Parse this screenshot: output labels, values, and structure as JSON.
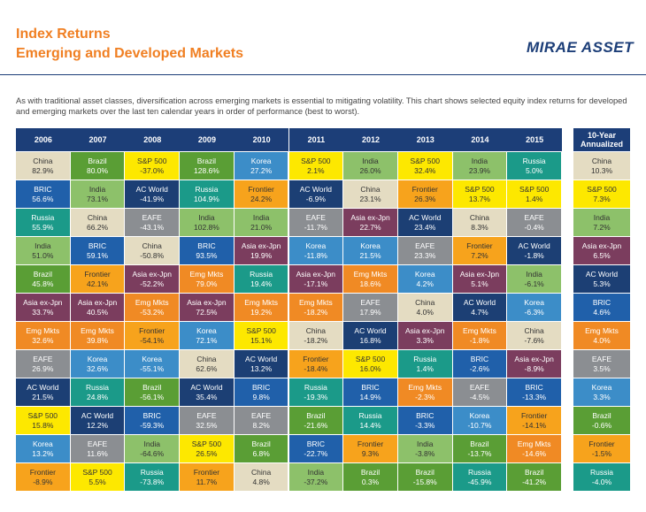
{
  "header": {
    "title_line1": "Index Returns",
    "title_line2": "Emerging and Developed Markets",
    "logo": "MIRAE ASSET"
  },
  "intro": "As with traditional asset classes, diversification across emerging markets is essential to mitigating volatility. This chart shows selected equity index returns for developed and emerging markets over the last ten calendar years in order of performance (best to worst).",
  "colors": {
    "China": {
      "fill": "#e4dcc2",
      "text": "#333"
    },
    "BRIC": {
      "fill": "#2060aa",
      "text": "#fff"
    },
    "Russia": {
      "fill": "#1b9a89",
      "text": "#fff"
    },
    "India": {
      "fill": "#8dc16a",
      "text": "#333"
    },
    "Brazil": {
      "fill": "#5a9e35",
      "text": "#fff"
    },
    "Asia ex-Jpn": {
      "fill": "#7b3d5e",
      "text": "#fff"
    },
    "Emg Mkts": {
      "fill": "#f08a24",
      "text": "#fff"
    },
    "EAFE": {
      "fill": "#8b8e92",
      "text": "#fff"
    },
    "AC World": {
      "fill": "#1c3f74",
      "text": "#fff"
    },
    "S&P 500": {
      "fill": "#fde800",
      "text": "#333"
    },
    "Korea": {
      "fill": "#3c8dc8",
      "text": "#fff"
    },
    "Frontier": {
      "fill": "#f7a31c",
      "text": "#333"
    }
  },
  "table": {
    "years": [
      "2006",
      "2007",
      "2008",
      "2009",
      "2010",
      "2011",
      "2012",
      "2013",
      "2014",
      "2015"
    ],
    "annualized_header": "10-Year Annualized",
    "columns": [
      [
        {
          "name": "China",
          "value": "82.9%"
        },
        {
          "name": "BRIC",
          "value": "56.6%"
        },
        {
          "name": "Russia",
          "value": "55.9%"
        },
        {
          "name": "India",
          "value": "51.0%"
        },
        {
          "name": "Brazil",
          "value": "45.8%"
        },
        {
          "name": "Asia ex-Jpn",
          "value": "33.7%"
        },
        {
          "name": "Emg Mkts",
          "value": "32.6%"
        },
        {
          "name": "EAFE",
          "value": "26.9%"
        },
        {
          "name": "AC World",
          "value": "21.5%"
        },
        {
          "name": "S&P 500",
          "value": "15.8%"
        },
        {
          "name": "Korea",
          "value": "13.2%"
        },
        {
          "name": "Frontier",
          "value": "-8.9%"
        }
      ],
      [
        {
          "name": "Brazil",
          "value": "80.0%"
        },
        {
          "name": "India",
          "value": "73.1%"
        },
        {
          "name": "China",
          "value": "66.2%"
        },
        {
          "name": "BRIC",
          "value": "59.1%"
        },
        {
          "name": "Frontier",
          "value": "42.1%"
        },
        {
          "name": "Asia ex-Jpn",
          "value": "40.5%"
        },
        {
          "name": "Emg Mkts",
          "value": "39.8%"
        },
        {
          "name": "Korea",
          "value": "32.6%"
        },
        {
          "name": "Russia",
          "value": "24.8%"
        },
        {
          "name": "AC World",
          "value": "12.2%"
        },
        {
          "name": "EAFE",
          "value": "11.6%"
        },
        {
          "name": "S&P 500",
          "value": "5.5%"
        }
      ],
      [
        {
          "name": "S&P 500",
          "value": "-37.0%"
        },
        {
          "name": "AC World",
          "value": "-41.9%"
        },
        {
          "name": "EAFE",
          "value": "-43.1%"
        },
        {
          "name": "China",
          "value": "-50.8%"
        },
        {
          "name": "Asia ex-Jpn",
          "value": "-52.2%"
        },
        {
          "name": "Emg Mkts",
          "value": "-53.2%"
        },
        {
          "name": "Frontier",
          "value": "-54.1%"
        },
        {
          "name": "Korea",
          "value": "-55.1%"
        },
        {
          "name": "Brazil",
          "value": "-56.1%"
        },
        {
          "name": "BRIC",
          "value": "-59.3%"
        },
        {
          "name": "India",
          "value": "-64.6%"
        },
        {
          "name": "Russia",
          "value": "-73.8%"
        }
      ],
      [
        {
          "name": "Brazil",
          "value": "128.6%"
        },
        {
          "name": "Russia",
          "value": "104.9%"
        },
        {
          "name": "India",
          "value": "102.8%"
        },
        {
          "name": "BRIC",
          "value": "93.5%"
        },
        {
          "name": "Emg Mkts",
          "value": "79.0%"
        },
        {
          "name": "Asia ex-Jpn",
          "value": "72.5%"
        },
        {
          "name": "Korea",
          "value": "72.1%"
        },
        {
          "name": "China",
          "value": "62.6%"
        },
        {
          "name": "AC World",
          "value": "35.4%"
        },
        {
          "name": "EAFE",
          "value": "32.5%"
        },
        {
          "name": "S&P 500",
          "value": "26.5%"
        },
        {
          "name": "Frontier",
          "value": "11.7%"
        }
      ],
      [
        {
          "name": "Korea",
          "value": "27.2%"
        },
        {
          "name": "Frontier",
          "value": "24.2%"
        },
        {
          "name": "India",
          "value": "21.0%"
        },
        {
          "name": "Asia ex-Jpn",
          "value": "19.9%"
        },
        {
          "name": "Russia",
          "value": "19.4%"
        },
        {
          "name": "Emg Mkts",
          "value": "19.2%"
        },
        {
          "name": "S&P 500",
          "value": "15.1%"
        },
        {
          "name": "AC World",
          "value": "13.2%"
        },
        {
          "name": "BRIC",
          "value": "9.8%"
        },
        {
          "name": "EAFE",
          "value": "8.2%"
        },
        {
          "name": "Brazil",
          "value": "6.8%"
        },
        {
          "name": "China",
          "value": "4.8%"
        }
      ],
      [
        {
          "name": "S&P 500",
          "value": "2.1%"
        },
        {
          "name": "AC World",
          "value": "-6.9%"
        },
        {
          "name": "EAFE",
          "value": "-11.7%"
        },
        {
          "name": "Korea",
          "value": "-11.8%"
        },
        {
          "name": "Asia ex-Jpn",
          "value": "-17.1%"
        },
        {
          "name": "Emg Mkts",
          "value": "-18.2%"
        },
        {
          "name": "China",
          "value": "-18.2%"
        },
        {
          "name": "Frontier",
          "value": "-18.4%"
        },
        {
          "name": "Russia",
          "value": "-19.3%"
        },
        {
          "name": "Brazil",
          "value": "-21.6%"
        },
        {
          "name": "BRIC",
          "value": "-22.7%"
        },
        {
          "name": "India",
          "value": "-37.2%"
        }
      ],
      [
        {
          "name": "India",
          "value": "26.0%"
        },
        {
          "name": "China",
          "value": "23.1%"
        },
        {
          "name": "Asia ex-Jpn",
          "value": "22.7%"
        },
        {
          "name": "Korea",
          "value": "21.5%"
        },
        {
          "name": "Emg Mkts",
          "value": "18.6%"
        },
        {
          "name": "EAFE",
          "value": "17.9%"
        },
        {
          "name": "AC World",
          "value": "16.8%"
        },
        {
          "name": "S&P 500",
          "value": "16.0%"
        },
        {
          "name": "BRIC",
          "value": "14.9%"
        },
        {
          "name": "Russia",
          "value": "14.4%"
        },
        {
          "name": "Frontier",
          "value": "9.3%"
        },
        {
          "name": "Brazil",
          "value": "0.3%"
        }
      ],
      [
        {
          "name": "S&P 500",
          "value": "32.4%"
        },
        {
          "name": "Frontier",
          "value": "26.3%"
        },
        {
          "name": "AC World",
          "value": "23.4%"
        },
        {
          "name": "EAFE",
          "value": "23.3%"
        },
        {
          "name": "Korea",
          "value": "4.2%"
        },
        {
          "name": "China",
          "value": "4.0%"
        },
        {
          "name": "Asia ex-Jpn",
          "value": "3.3%"
        },
        {
          "name": "Russia",
          "value": "1.4%"
        },
        {
          "name": "Emg Mkts",
          "value": "-2.3%"
        },
        {
          "name": "BRIC",
          "value": "-3.3%"
        },
        {
          "name": "India",
          "value": "-3.8%"
        },
        {
          "name": "Brazil",
          "value": "-15.8%"
        }
      ],
      [
        {
          "name": "India",
          "value": "23.9%"
        },
        {
          "name": "S&P 500",
          "value": "13.7%"
        },
        {
          "name": "China",
          "value": "8.3%"
        },
        {
          "name": "Frontier",
          "value": "7.2%"
        },
        {
          "name": "Asia ex-Jpn",
          "value": "5.1%"
        },
        {
          "name": "AC World",
          "value": "4.7%"
        },
        {
          "name": "Emg Mkts",
          "value": "-1.8%"
        },
        {
          "name": "BRIC",
          "value": "-2.6%"
        },
        {
          "name": "EAFE",
          "value": "-4.5%"
        },
        {
          "name": "Korea",
          "value": "-10.7%"
        },
        {
          "name": "Brazil",
          "value": "-13.7%"
        },
        {
          "name": "Russia",
          "value": "-45.9%"
        }
      ],
      [
        {
          "name": "Russia",
          "value": "5.0%"
        },
        {
          "name": "S&P 500",
          "value": "1.4%"
        },
        {
          "name": "EAFE",
          "value": "-0.4%"
        },
        {
          "name": "AC World",
          "value": "-1.8%"
        },
        {
          "name": "India",
          "value": "-6.1%"
        },
        {
          "name": "Korea",
          "value": "-6.3%"
        },
        {
          "name": "China",
          "value": "-7.6%"
        },
        {
          "name": "Asia ex-Jpn",
          "value": "-8.9%"
        },
        {
          "name": "BRIC",
          "value": "-13.3%"
        },
        {
          "name": "Frontier",
          "value": "-14.1%"
        },
        {
          "name": "Emg Mkts",
          "value": "-14.6%"
        },
        {
          "name": "Brazil",
          "value": "-41.2%"
        }
      ]
    ],
    "annualized": [
      {
        "name": "China",
        "value": "10.3%"
      },
      {
        "name": "S&P 500",
        "value": "7.3%"
      },
      {
        "name": "India",
        "value": "7.2%"
      },
      {
        "name": "Asia ex-Jpn",
        "value": "6.5%"
      },
      {
        "name": "AC World",
        "value": "5.3%"
      },
      {
        "name": "BRIC",
        "value": "4.6%"
      },
      {
        "name": "Emg Mkts",
        "value": "4.0%"
      },
      {
        "name": "EAFE",
        "value": "3.5%"
      },
      {
        "name": "Korea",
        "value": "3.3%"
      },
      {
        "name": "Brazil",
        "value": "-0.6%"
      },
      {
        "name": "Frontier",
        "value": "-1.5%"
      },
      {
        "name": "Russia",
        "value": "-4.0%"
      }
    ]
  }
}
